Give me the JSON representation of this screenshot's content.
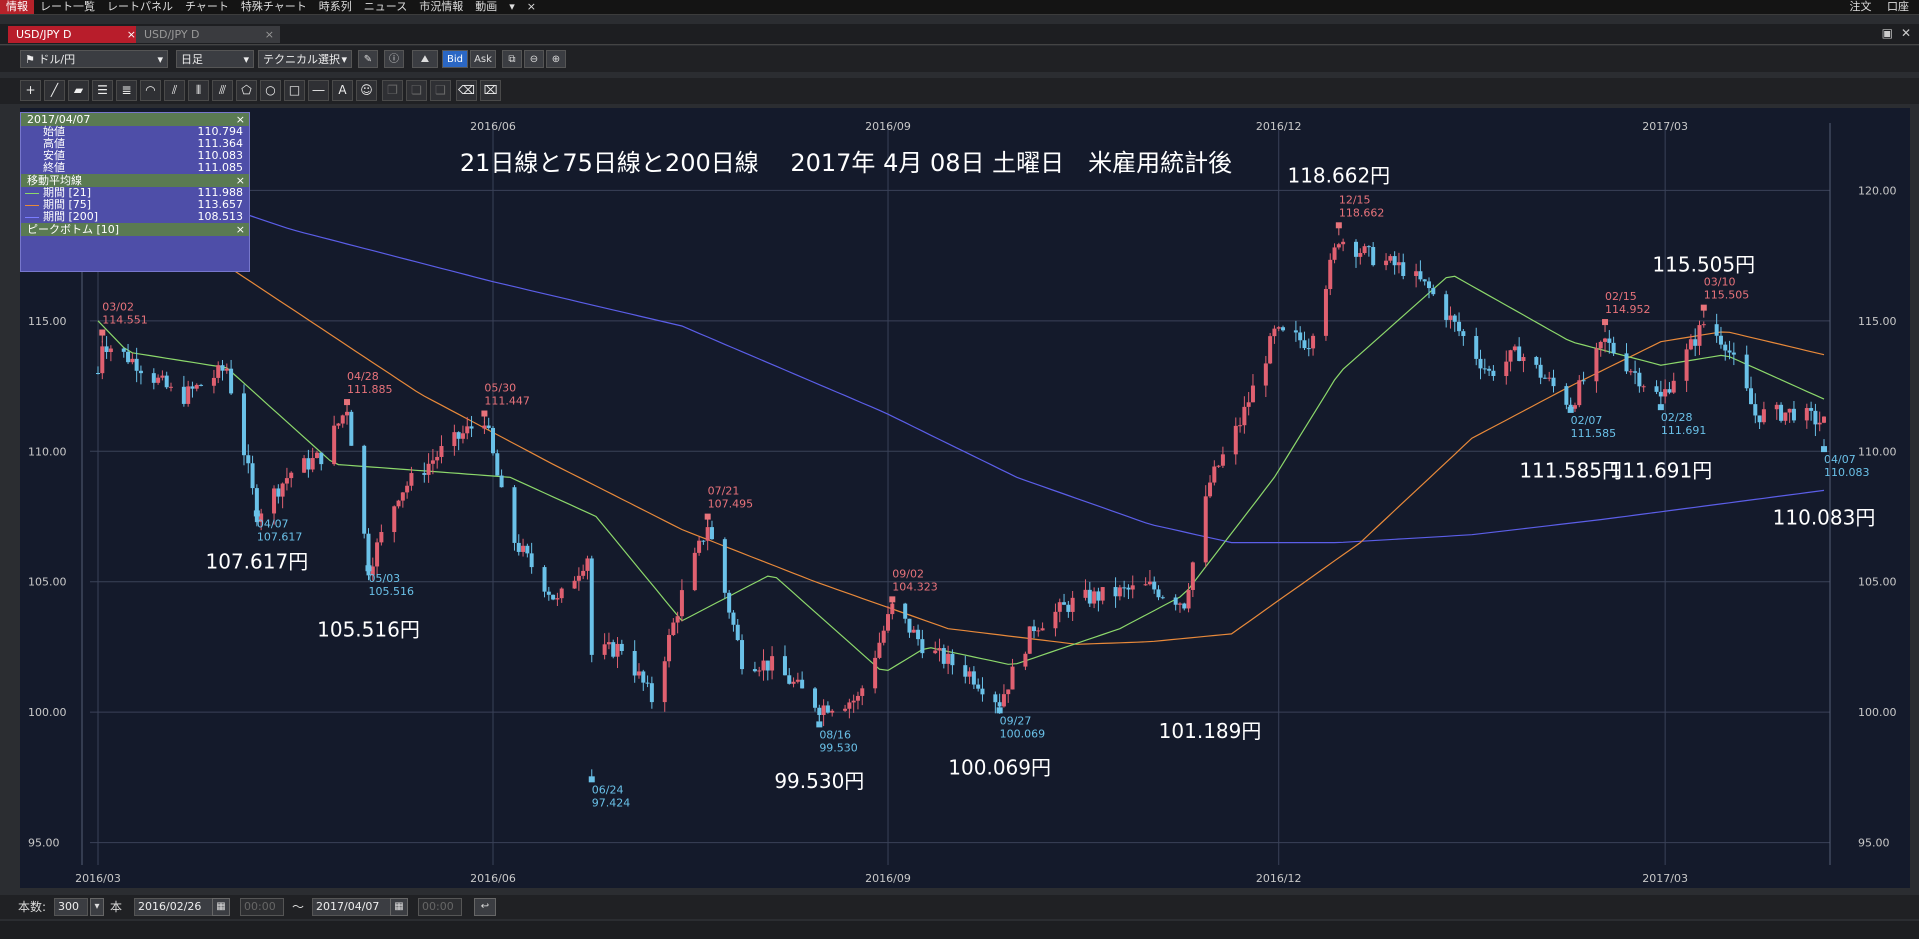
{
  "menu": {
    "items": [
      "情報",
      "レート一覧",
      "レートパネル",
      "チャート",
      "特殊チャート",
      "時系列",
      "ニュース",
      "市況情報",
      "動画"
    ],
    "right": [
      "注文",
      "口座"
    ]
  },
  "tabs": [
    {
      "label": "USD/JPY D",
      "active": true
    },
    {
      "label": "USD/JPY D",
      "active": false
    }
  ],
  "toolbar": {
    "pair": "ドル/円",
    "period": "日足",
    "technical": "テクニカル選択",
    "bid": "Bid",
    "ask": "Ask"
  },
  "info_panel": {
    "date": "2017/04/07",
    "ohlc": [
      {
        "label": "始値",
        "value": "110.794"
      },
      {
        "label": "高値",
        "value": "111.364"
      },
      {
        "label": "安値",
        "value": "110.083"
      },
      {
        "label": "終値",
        "value": "111.085"
      }
    ],
    "ma_title": "移動平均線",
    "ma": [
      {
        "label": "期間 [21]",
        "value": "111.988",
        "color": "#8cd86b"
      },
      {
        "label": "期間 [75]",
        "value": "113.657",
        "color": "#e8893a"
      },
      {
        "label": "期間 [200]",
        "value": "108.513",
        "color": "#5b5ee8"
      }
    ],
    "peak_title": "ピークボトム [10]"
  },
  "bottom": {
    "count_label": "本数:",
    "count_value": "300",
    "unit": "本",
    "from_date": "2016/02/26",
    "from_time": "00:00",
    "tilde": "〜",
    "to_date": "2017/04/07",
    "to_time": "00:00"
  },
  "chart_data": {
    "type": "candlestick",
    "title": "21日線と75日線と200日線　 2017年 4月 08日 土曜日　米雇用統計後",
    "ylim": [
      94.6,
      122.2
    ],
    "y_ticks": [
      "95.00",
      "100.00",
      "105.00",
      "110.00",
      "115.00",
      "120.00"
    ],
    "x_ticks": [
      "2016/03",
      "2016/06",
      "2016/09",
      "2016/12",
      "2017/03"
    ],
    "colors": {
      "up": "#e06070",
      "down": "#6ac1e8",
      "ma21": "#8cd86b",
      "ma75": "#e8893a",
      "ma200": "#5b5ee8",
      "label_red": "#e8737b",
      "label_blue": "#6ac1e8"
    },
    "anchors": [
      [
        "2016-03-01",
        113.0
      ],
      [
        "2016-03-02",
        114.2
      ],
      [
        "2016-03-10",
        113.4
      ],
      [
        "2016-03-20",
        112.0
      ],
      [
        "2016-03-31",
        113.2
      ],
      [
        "2016-04-07",
        107.617
      ],
      [
        "2016-04-15",
        109.2
      ],
      [
        "2016-04-22",
        109.8
      ],
      [
        "2016-04-28",
        111.7
      ],
      [
        "2016-05-03",
        105.516
      ],
      [
        "2016-05-10",
        108.4
      ],
      [
        "2016-05-20",
        110.0
      ],
      [
        "2016-05-30",
        111.3
      ],
      [
        "2016-06-05",
        106.8
      ],
      [
        "2016-06-16",
        104.2
      ],
      [
        "2016-06-23",
        106.0
      ],
      [
        "2016-06-24",
        102.2
      ],
      [
        "2016-07-01",
        102.5
      ],
      [
        "2016-07-08",
        100.5
      ],
      [
        "2016-07-15",
        104.5
      ],
      [
        "2016-07-21",
        107.2
      ],
      [
        "2016-07-29",
        102.0
      ],
      [
        "2016-08-05",
        101.8
      ],
      [
        "2016-08-16",
        100.2
      ],
      [
        "2016-08-25",
        100.5
      ],
      [
        "2016-09-02",
        104.0
      ],
      [
        "2016-09-10",
        102.4
      ],
      [
        "2016-09-20",
        101.5
      ],
      [
        "2016-09-27",
        100.4
      ],
      [
        "2016-10-05",
        103.3
      ],
      [
        "2016-10-15",
        104.3
      ],
      [
        "2016-10-25",
        104.6
      ],
      [
        "2016-11-01",
        104.8
      ],
      [
        "2016-11-09",
        104.2
      ],
      [
        "2016-11-15",
        108.8
      ],
      [
        "2016-11-22",
        111.1
      ],
      [
        "2016-11-30",
        114.5
      ],
      [
        "2016-12-08",
        114.2
      ],
      [
        "2016-12-15",
        118.2
      ],
      [
        "2016-12-22",
        117.5
      ],
      [
        "2016-12-30",
        117.0
      ],
      [
        "2017-01-05",
        116.2
      ],
      [
        "2017-01-12",
        114.6
      ],
      [
        "2017-01-19",
        113.0
      ],
      [
        "2017-01-26",
        113.8
      ],
      [
        "2017-02-07",
        111.8
      ],
      [
        "2017-02-15",
        114.2
      ],
      [
        "2017-02-22",
        113.0
      ],
      [
        "2017-02-28",
        112.0
      ],
      [
        "2017-03-10",
        114.9
      ],
      [
        "2017-03-15",
        114.2
      ],
      [
        "2017-03-22",
        111.4
      ],
      [
        "2017-03-31",
        111.5
      ],
      [
        "2017-04-07",
        111.085
      ]
    ],
    "ma21": [
      [
        "2016-03-01",
        115.0
      ],
      [
        "2016-03-08",
        113.8
      ],
      [
        "2016-03-31",
        113.2
      ],
      [
        "2016-04-25",
        109.5
      ],
      [
        "2016-05-20",
        109.2
      ],
      [
        "2016-06-05",
        109.0
      ],
      [
        "2016-06-25",
        107.5
      ],
      [
        "2016-07-15",
        103.5
      ],
      [
        "2016-08-05",
        105.3
      ],
      [
        "2016-08-31",
        101.5
      ],
      [
        "2016-09-10",
        102.5
      ],
      [
        "2016-09-30",
        101.8
      ],
      [
        "2016-10-25",
        103.2
      ],
      [
        "2016-11-09",
        104.5
      ],
      [
        "2016-11-30",
        109.0
      ],
      [
        "2016-12-15",
        113.0
      ],
      [
        "2017-01-10",
        116.8
      ],
      [
        "2017-02-07",
        114.2
      ],
      [
        "2017-02-28",
        113.3
      ],
      [
        "2017-03-15",
        113.7
      ],
      [
        "2017-04-07",
        112.0
      ]
    ],
    "ma75": [
      [
        "2016-03-01",
        119.0
      ],
      [
        "2016-04-01",
        117.0
      ],
      [
        "2016-05-15",
        112.2
      ],
      [
        "2016-06-15",
        109.5
      ],
      [
        "2016-07-15",
        107.0
      ],
      [
        "2016-08-15",
        105.0
      ],
      [
        "2016-09-15",
        103.2
      ],
      [
        "2016-10-15",
        102.6
      ],
      [
        "2016-11-01",
        102.7
      ],
      [
        "2016-11-20",
        103.0
      ],
      [
        "2016-12-20",
        106.5
      ],
      [
        "2017-01-15",
        110.5
      ],
      [
        "2017-02-07",
        112.5
      ],
      [
        "2017-02-28",
        114.2
      ],
      [
        "2017-03-15",
        114.6
      ],
      [
        "2017-04-07",
        113.7
      ]
    ],
    "ma200": [
      [
        "2016-03-01",
        121.0
      ],
      [
        "2016-04-15",
        118.5
      ],
      [
        "2016-06-01",
        116.5
      ],
      [
        "2016-07-15",
        114.8
      ],
      [
        "2016-08-31",
        111.5
      ],
      [
        "2016-10-01",
        109.0
      ],
      [
        "2016-11-01",
        107.2
      ],
      [
        "2016-11-20",
        106.5
      ],
      [
        "2016-12-15",
        106.5
      ],
      [
        "2017-01-15",
        106.8
      ],
      [
        "2017-02-15",
        107.4
      ],
      [
        "2017-04-07",
        108.5
      ]
    ],
    "peaks": [
      {
        "date": "2016-03-02",
        "md": "03/02",
        "value": "114.551",
        "type": "high"
      },
      {
        "date": "2016-04-07",
        "md": "04/07",
        "value": "107.617",
        "type": "low"
      },
      {
        "date": "2016-04-28",
        "md": "04/28",
        "value": "111.885",
        "type": "high"
      },
      {
        "date": "2016-05-03",
        "md": "05/03",
        "value": "105.516",
        "type": "low"
      },
      {
        "date": "2016-05-30",
        "md": "05/30",
        "value": "111.447",
        "type": "high"
      },
      {
        "date": "2016-06-24",
        "md": "06/24",
        "value": "97.424",
        "type": "low"
      },
      {
        "date": "2016-07-21",
        "md": "07/21",
        "value": "107.495",
        "type": "high"
      },
      {
        "date": "2016-08-16",
        "md": "08/16",
        "value": "99.530",
        "type": "low"
      },
      {
        "date": "2016-09-02",
        "md": "09/02",
        "value": "104.323",
        "type": "high"
      },
      {
        "date": "2016-09-27",
        "md": "09/27",
        "value": "100.069",
        "type": "low"
      },
      {
        "date": "2016-12-15",
        "md": "12/15",
        "value": "118.662",
        "type": "high"
      },
      {
        "date": "2017-02-07",
        "md": "02/07",
        "value": "111.585",
        "type": "low"
      },
      {
        "date": "2017-02-15",
        "md": "02/15",
        "value": "114.952",
        "type": "high"
      },
      {
        "date": "2017-02-28",
        "md": "02/28",
        "value": "111.691",
        "type": "low"
      },
      {
        "date": "2017-03-10",
        "md": "03/10",
        "value": "115.505",
        "type": "high"
      },
      {
        "date": "2017-04-07",
        "md": "04/07",
        "value": "110.083",
        "type": "low"
      }
    ],
    "annotations": [
      {
        "text": "107.617円",
        "date": "2016-04-07",
        "y": 105.5
      },
      {
        "text": "105.516円",
        "date": "2016-05-03",
        "y": 102.9
      },
      {
        "text": "99.530円",
        "date": "2016-08-16",
        "y": 97.1
      },
      {
        "text": "100.069円",
        "date": "2016-09-27",
        "y": 97.6
      },
      {
        "text": "101.189円",
        "date": "2016-11-15",
        "y": 99.0
      },
      {
        "text": "118.662円",
        "date": "2016-12-15",
        "y": 120.3
      },
      {
        "text": "111.585円",
        "date": "2017-02-07",
        "y": 109.0
      },
      {
        "text": "111.691円",
        "date": "2017-02-28",
        "y": 109.0
      },
      {
        "text": "115.505円",
        "date": "2017-03-10",
        "y": 116.9
      },
      {
        "text": "110.083円",
        "date": "2017-04-07",
        "y": 107.2
      }
    ]
  }
}
